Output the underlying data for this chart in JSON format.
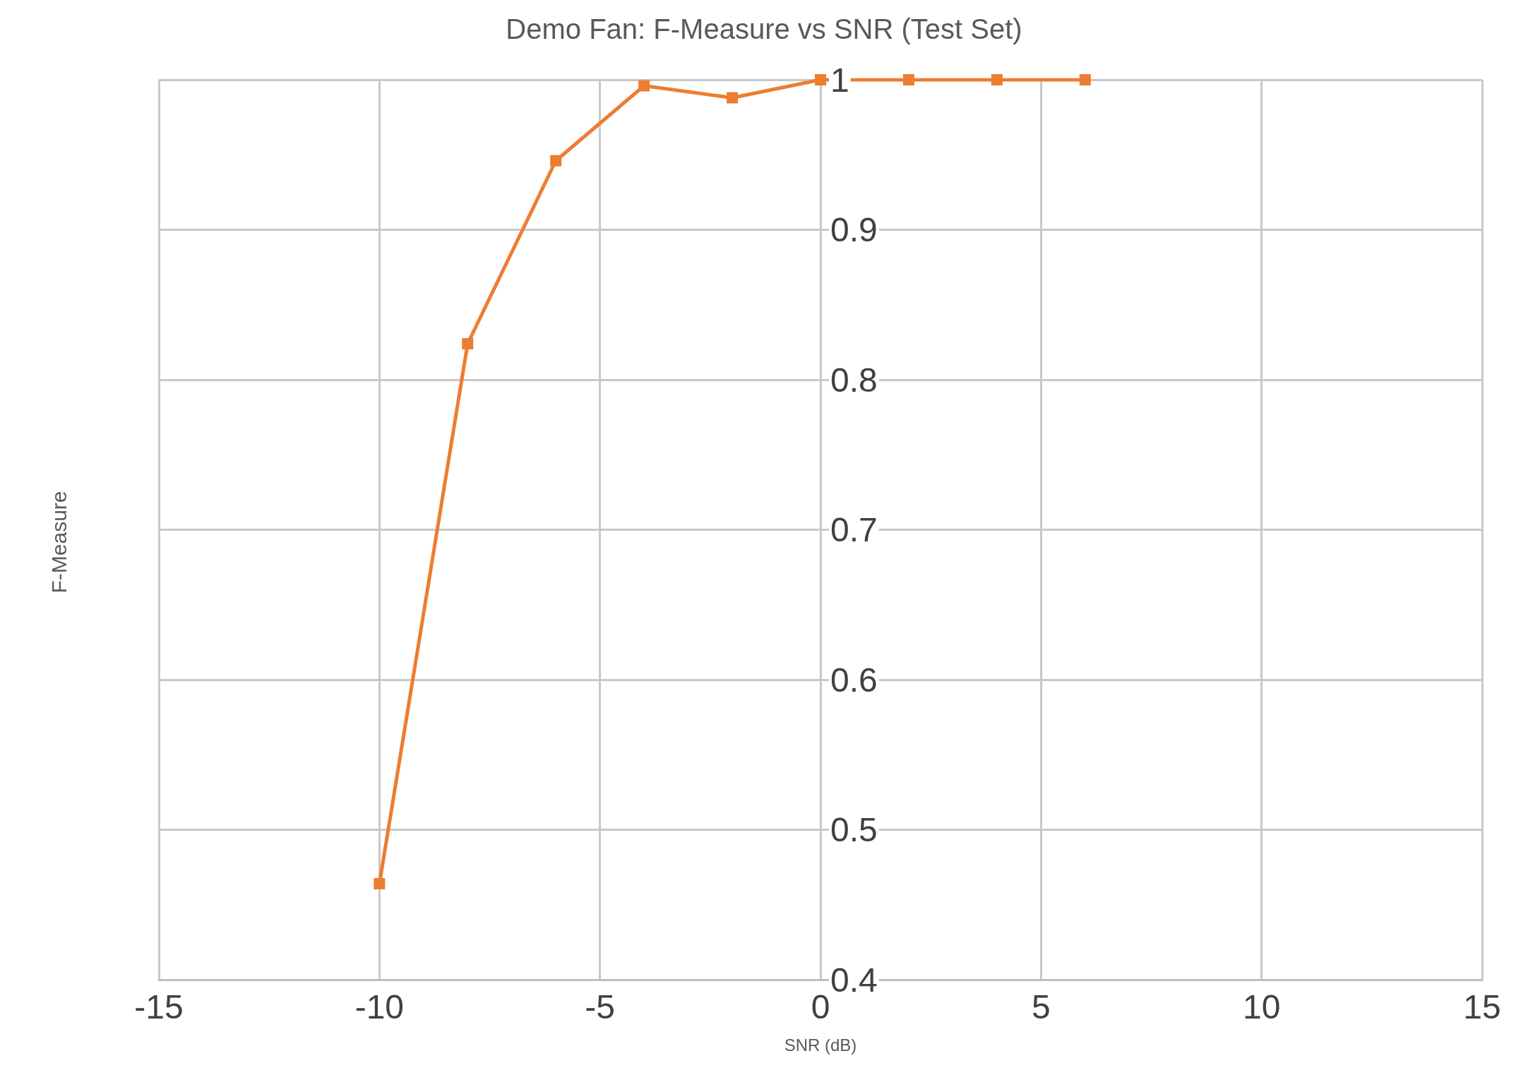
{
  "chart_data": {
    "type": "line",
    "title": "Demo Fan: F-Measure vs SNR (Test Set)",
    "xlabel": "SNR (dB)",
    "ylabel": "F-Measure",
    "x": [
      -10,
      -8,
      -6,
      -4,
      -2,
      0,
      2,
      4,
      6
    ],
    "series": [
      {
        "color": "#ed7d31",
        "values": [
          0.464,
          0.824,
          0.946,
          0.996,
          0.988,
          1,
          1,
          1,
          1
        ]
      }
    ],
    "xlim": [
      -15,
      15
    ],
    "xticks": [
      -15,
      -10,
      -5,
      0,
      5,
      10,
      15
    ],
    "ylim": [
      0.4,
      1
    ],
    "yticks": [
      0.4,
      0.5,
      0.6,
      0.7,
      0.8,
      0.9,
      1
    ],
    "grid": true,
    "marker": "square",
    "line_style": "solid"
  }
}
